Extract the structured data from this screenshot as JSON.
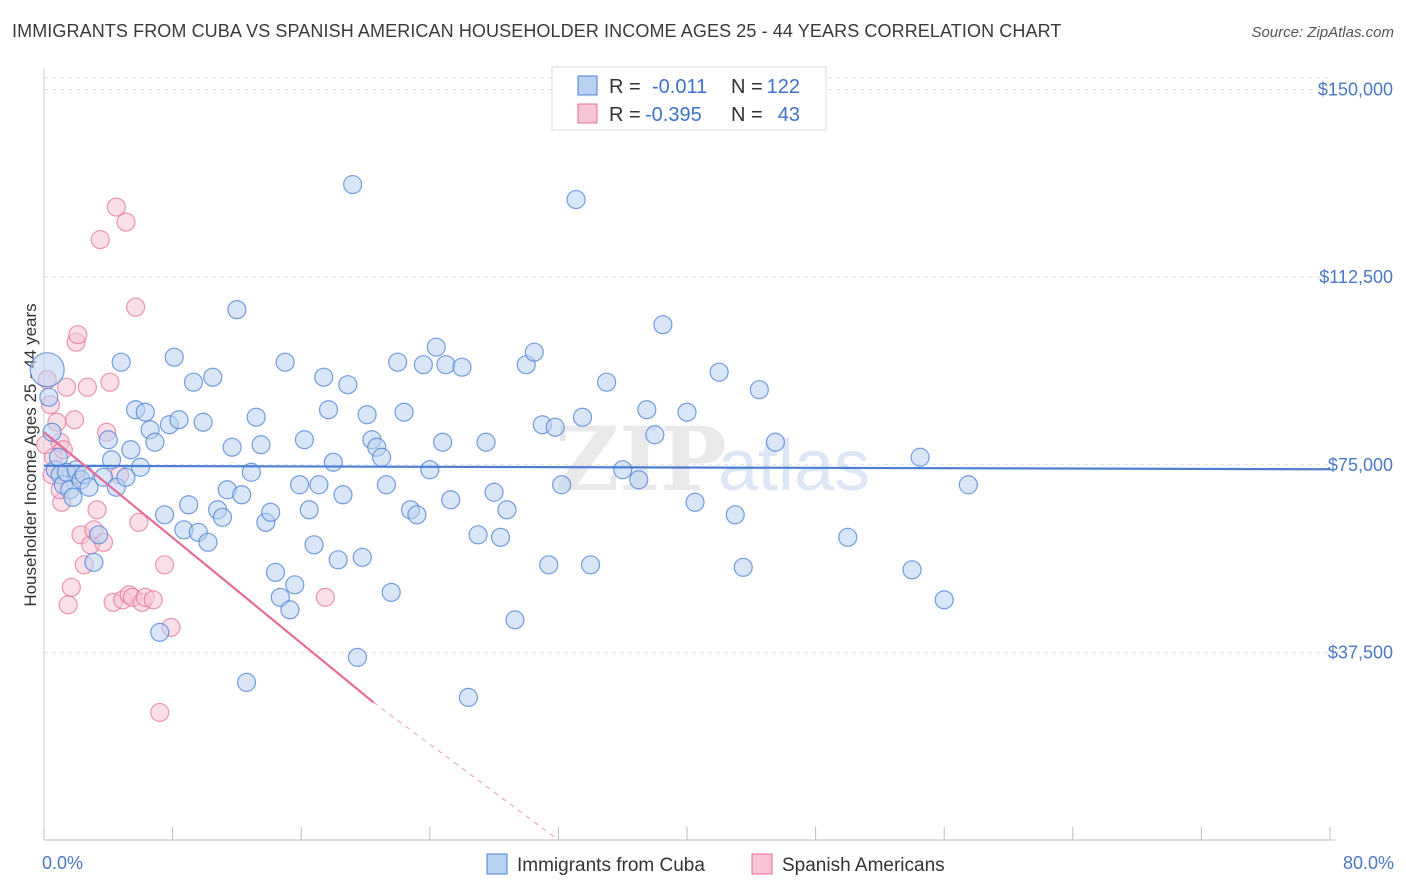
{
  "title": "IMMIGRANTS FROM CUBA VS SPANISH AMERICAN HOUSEHOLDER INCOME AGES 25 - 44 YEARS CORRELATION CHART",
  "source": "Source: ZipAtlas.com",
  "watermark": {
    "zip": "ZIP",
    "atlas": "atlas"
  },
  "colors": {
    "cuba": "#4a7fd4",
    "cuba_fill": "#b9d1f0",
    "spanish": "#e46c97",
    "spanish_fill": "#f6c4d6",
    "tick_label": "#4a78c4"
  },
  "legend": {
    "r_label": "R =",
    "n_label": "N =",
    "rows": [
      {
        "series": "cuba",
        "r": "-0.011",
        "n": "122"
      },
      {
        "series": "spanish",
        "r": "-0.395",
        "n": "43"
      }
    ]
  },
  "bottom_legend": [
    "Immigrants from Cuba",
    "Spanish Americans"
  ],
  "chart_data": {
    "type": "scatter",
    "title": "IMMIGRANTS FROM CUBA VS SPANISH AMERICAN HOUSEHOLDER INCOME AGES 25 - 44 YEARS CORRELATION CHART",
    "xlabel": "",
    "ylabel": "Householder Income Ages 25 - 44 years",
    "xlim": [
      0,
      80
    ],
    "ylim": [
      0,
      153500
    ],
    "x_tick_labels": [
      "0.0%",
      "80.0%"
    ],
    "y_ticks": [
      37500,
      75000,
      112500,
      150000
    ],
    "y_tick_labels": [
      "$37,500",
      "$75,000",
      "$112,500",
      "$150,000"
    ],
    "grid": "horizontal dashed",
    "legend_position": "top-center",
    "series": [
      {
        "name": "Immigrants from Cuba",
        "color": "#4a7fd4",
        "trend": {
          "x": [
            0,
            80
          ],
          "y": [
            74800,
            74100
          ]
        },
        "points": [
          [
            0.2,
            94000
          ],
          [
            0.3,
            88500
          ],
          [
            0.5,
            81500
          ],
          [
            0.7,
            74000
          ],
          [
            0.9,
            76500
          ],
          [
            1.0,
            73000
          ],
          [
            1.2,
            71000
          ],
          [
            1.4,
            73500
          ],
          [
            1.6,
            70000
          ],
          [
            1.8,
            68500
          ],
          [
            2.0,
            74000
          ],
          [
            2.3,
            72000
          ],
          [
            2.5,
            73000
          ],
          [
            2.8,
            70500
          ],
          [
            3.1,
            55500
          ],
          [
            3.4,
            61000
          ],
          [
            3.7,
            72500
          ],
          [
            4.0,
            80000
          ],
          [
            4.2,
            76000
          ],
          [
            4.5,
            70500
          ],
          [
            4.8,
            95500
          ],
          [
            5.1,
            72500
          ],
          [
            5.4,
            78000
          ],
          [
            5.7,
            86000
          ],
          [
            6.0,
            74500
          ],
          [
            6.3,
            85500
          ],
          [
            6.6,
            82000
          ],
          [
            6.9,
            79500
          ],
          [
            7.2,
            41500
          ],
          [
            7.5,
            65000
          ],
          [
            7.8,
            83000
          ],
          [
            8.1,
            96500
          ],
          [
            8.4,
            84000
          ],
          [
            8.7,
            62000
          ],
          [
            9.0,
            67000
          ],
          [
            9.3,
            91500
          ],
          [
            9.6,
            61500
          ],
          [
            9.9,
            83500
          ],
          [
            10.2,
            59500
          ],
          [
            10.5,
            92500
          ],
          [
            10.8,
            66000
          ],
          [
            11.1,
            64500
          ],
          [
            11.4,
            70000
          ],
          [
            11.7,
            78500
          ],
          [
            12.0,
            106000
          ],
          [
            12.3,
            69000
          ],
          [
            12.6,
            31500
          ],
          [
            12.9,
            73500
          ],
          [
            13.2,
            84500
          ],
          [
            13.5,
            79000
          ],
          [
            13.8,
            63500
          ],
          [
            14.1,
            65500
          ],
          [
            14.4,
            53500
          ],
          [
            14.7,
            48500
          ],
          [
            15.0,
            95500
          ],
          [
            15.3,
            46000
          ],
          [
            15.6,
            51000
          ],
          [
            15.9,
            71000
          ],
          [
            16.2,
            80000
          ],
          [
            16.5,
            66000
          ],
          [
            16.8,
            59000
          ],
          [
            17.1,
            71000
          ],
          [
            17.4,
            92500
          ],
          [
            17.7,
            86000
          ],
          [
            18.0,
            75500
          ],
          [
            18.3,
            56000
          ],
          [
            18.6,
            69000
          ],
          [
            18.9,
            91000
          ],
          [
            19.2,
            131000
          ],
          [
            19.5,
            36500
          ],
          [
            19.8,
            56500
          ],
          [
            20.1,
            85000
          ],
          [
            20.4,
            80000
          ],
          [
            20.7,
            78500
          ],
          [
            21.0,
            76500
          ],
          [
            21.3,
            71000
          ],
          [
            21.6,
            49500
          ],
          [
            22.0,
            95500
          ],
          [
            22.4,
            85500
          ],
          [
            22.8,
            66000
          ],
          [
            23.2,
            65000
          ],
          [
            23.6,
            95000
          ],
          [
            24.0,
            74000
          ],
          [
            24.4,
            98500
          ],
          [
            24.8,
            79500
          ],
          [
            25.0,
            95000
          ],
          [
            25.3,
            68000
          ],
          [
            26.0,
            94500
          ],
          [
            26.4,
            28500
          ],
          [
            27.0,
            61000
          ],
          [
            27.5,
            79500
          ],
          [
            28.0,
            69500
          ],
          [
            28.4,
            60500
          ],
          [
            28.8,
            66000
          ],
          [
            29.3,
            44000
          ],
          [
            30.0,
            95000
          ],
          [
            30.5,
            97500
          ],
          [
            31.0,
            83000
          ],
          [
            31.4,
            55000
          ],
          [
            31.8,
            82500
          ],
          [
            32.2,
            71000
          ],
          [
            33.1,
            128000
          ],
          [
            33.5,
            84500
          ],
          [
            34.0,
            55000
          ],
          [
            35.0,
            91500
          ],
          [
            36.0,
            74000
          ],
          [
            37.0,
            72000
          ],
          [
            37.5,
            86000
          ],
          [
            38.0,
            81000
          ],
          [
            38.5,
            103000
          ],
          [
            40.0,
            85500
          ],
          [
            40.5,
            67500
          ],
          [
            42.0,
            93500
          ],
          [
            43.0,
            65000
          ],
          [
            43.5,
            54500
          ],
          [
            44.5,
            90000
          ],
          [
            45.5,
            79500
          ],
          [
            50.0,
            60500
          ],
          [
            54.5,
            76500
          ],
          [
            54.0,
            54000
          ],
          [
            56.0,
            48000
          ],
          [
            57.5,
            71000
          ]
        ]
      },
      {
        "name": "Spanish Americans",
        "color": "#e46c97",
        "trend": {
          "x": [
            0,
            20.5
          ],
          "y": [
            81500,
            27500
          ],
          "dashed_to": [
            32,
            0
          ]
        },
        "points": [
          [
            0.1,
            79000
          ],
          [
            0.2,
            92000
          ],
          [
            0.4,
            87000
          ],
          [
            0.5,
            73000
          ],
          [
            0.6,
            76500
          ],
          [
            0.8,
            83500
          ],
          [
            1.0,
            79500
          ],
          [
            1.1,
            67500
          ],
          [
            1.2,
            78000
          ],
          [
            1.4,
            90500
          ],
          [
            1.5,
            47000
          ],
          [
            1.7,
            50500
          ],
          [
            1.9,
            84000
          ],
          [
            2.0,
            99500
          ],
          [
            2.1,
            101000
          ],
          [
            2.3,
            61000
          ],
          [
            2.5,
            55000
          ],
          [
            2.7,
            90500
          ],
          [
            2.9,
            59000
          ],
          [
            3.1,
            62000
          ],
          [
            3.3,
            66000
          ],
          [
            3.5,
            120000
          ],
          [
            3.7,
            59500
          ],
          [
            3.9,
            81500
          ],
          [
            4.1,
            91500
          ],
          [
            4.3,
            47500
          ],
          [
            4.5,
            126500
          ],
          [
            4.7,
            73000
          ],
          [
            4.9,
            48000
          ],
          [
            5.1,
            123500
          ],
          [
            5.3,
            49000
          ],
          [
            5.5,
            48500
          ],
          [
            5.7,
            106500
          ],
          [
            5.9,
            63500
          ],
          [
            6.1,
            47500
          ],
          [
            6.3,
            48500
          ],
          [
            6.8,
            48000
          ],
          [
            7.2,
            25500
          ],
          [
            7.5,
            55000
          ],
          [
            7.9,
            42500
          ],
          [
            1.0,
            70000
          ],
          [
            2.0,
            73000
          ],
          [
            17.5,
            48500
          ]
        ]
      }
    ]
  }
}
